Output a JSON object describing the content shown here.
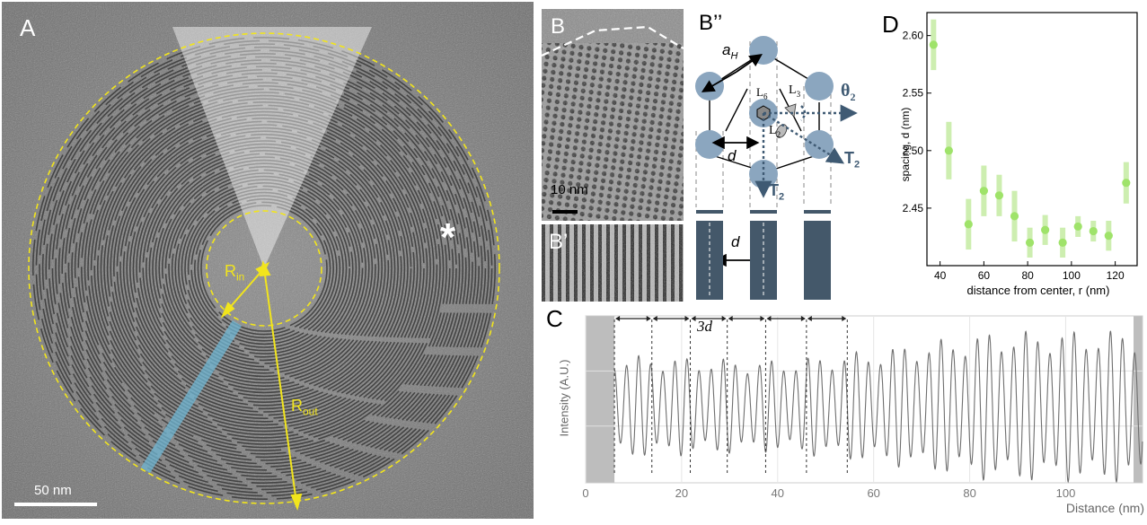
{
  "panels": {
    "A": {
      "label": "A",
      "r_in_label": "R",
      "r_in_sub": "in",
      "r_out_label": "R",
      "r_out_sub": "out",
      "asterisk": "*",
      "scalebar": "50 nm"
    },
    "B": {
      "label": "B",
      "scalebar": "10 nm"
    },
    "B_prime": {
      "label": "B’"
    },
    "B_double_prime": {
      "label": "B’’",
      "a_h": "a",
      "a_h_sub": "H",
      "L6": "L",
      "L6_sub": "6",
      "L3": "L",
      "L3_sub": "3",
      "L2": "L",
      "L2_sub": "2",
      "d_upper": "d",
      "d_lower": "d",
      "theta": "θ",
      "theta_sub": "2",
      "T2_right": "T",
      "T2_right_sub": "2",
      "T2_bottom": "T",
      "T2_bottom_sub": "2"
    },
    "C": {
      "label": "C",
      "annotation": "3d",
      "xlabel": "Distance (nm)",
      "ylabel": "Intensity (A.U.)",
      "xticks": [
        "0",
        "20",
        "40",
        "60",
        "80",
        "100"
      ]
    },
    "D": {
      "label": "D",
      "xlabel": "distance from center, r (nm)",
      "ylabel": "spacing, d (nm)",
      "xticks": [
        "40",
        "60",
        "80",
        "100",
        "120"
      ],
      "yticks": [
        "2.45",
        "2.50",
        "2.55",
        "2.60"
      ]
    }
  },
  "colors": {
    "yellow": "#f2e51c",
    "cyan_band": "#6fb6d3",
    "sphere": "#8ba6bf",
    "arrow_blue": "#3f5a73",
    "green_point": "#9fe36a",
    "green_err": "#cdeeb0",
    "bar": "#44586a"
  },
  "chart_data": [
    {
      "type": "scatter",
      "panel": "D",
      "xlabel": "distance from center, r (nm)",
      "ylabel": "spacing, d (nm)",
      "xlim": [
        34,
        130
      ],
      "ylim": [
        2.4,
        2.62
      ],
      "x": [
        37,
        44,
        53,
        60,
        67,
        74,
        81,
        88,
        96,
        103,
        110,
        117,
        125
      ],
      "y": [
        2.592,
        2.5,
        2.436,
        2.465,
        2.461,
        2.443,
        2.42,
        2.431,
        2.42,
        2.434,
        2.43,
        2.426,
        2.472
      ],
      "yerr": [
        0.022,
        0.025,
        0.022,
        0.022,
        0.018,
        0.022,
        0.013,
        0.013,
        0.013,
        0.009,
        0.009,
        0.013,
        0.018
      ]
    },
    {
      "type": "line",
      "panel": "C",
      "xlabel": "Distance (nm)",
      "ylabel": "Intensity (A.U.)",
      "xlim": [
        0,
        116
      ],
      "x_start": 6,
      "x_end": 116,
      "period": 2.52,
      "marker_x": [
        6,
        13.8,
        21.8,
        29.5,
        37.5,
        46,
        54.5
      ],
      "envelope": [
        [
          6,
          0.62
        ],
        [
          40,
          0.55
        ],
        [
          60,
          0.68
        ],
        [
          85,
          0.9
        ],
        [
          116,
          0.92
        ]
      ]
    }
  ]
}
